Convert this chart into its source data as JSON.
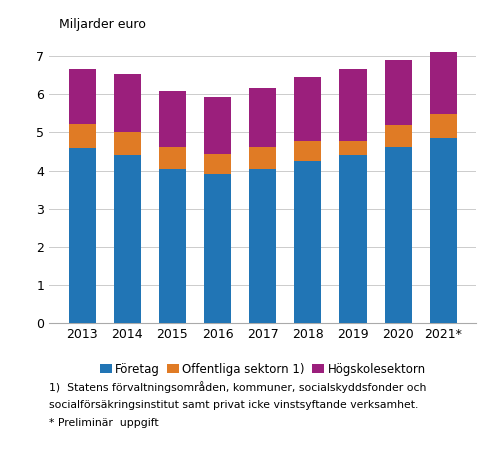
{
  "years": [
    "2013",
    "2014",
    "2015",
    "2016",
    "2017",
    "2018",
    "2019",
    "2020",
    "2021*"
  ],
  "foretag": [
    4.6,
    4.42,
    4.04,
    3.92,
    4.04,
    4.24,
    4.42,
    4.62,
    4.86
  ],
  "offentliga": [
    0.63,
    0.6,
    0.57,
    0.52,
    0.58,
    0.53,
    0.35,
    0.58,
    0.62
  ],
  "hogskolesektorn": [
    1.44,
    1.52,
    1.47,
    1.5,
    1.55,
    1.68,
    1.9,
    1.69,
    1.62
  ],
  "colors": {
    "foretag": "#2175b5",
    "offentliga": "#e07b25",
    "hogskolesektorn": "#9b1f7c"
  },
  "ylabel": "Miljarder euro",
  "ylim": [
    0,
    7.5
  ],
  "yticks": [
    0,
    1,
    2,
    3,
    4,
    5,
    6,
    7
  ],
  "legend_labels": [
    "Företag",
    "Offentliga sektorn 1)",
    "Högskolesektorn"
  ],
  "footnote1": "1)  Statens förvaltningsområden, kommuner, socialskyddsfonder och",
  "footnote2": "socialförsäkringsinstitut samt privat icke vinstsyftande verksamhet.",
  "footnote3": "* Preliminär  uppgift",
  "bar_width": 0.6,
  "background_color": "#ffffff"
}
